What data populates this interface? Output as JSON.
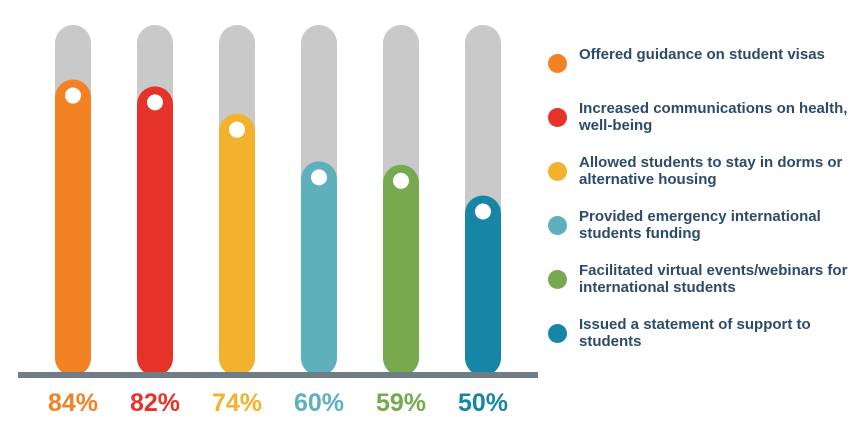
{
  "chart_data": {
    "type": "bar",
    "title": "",
    "xlabel": "",
    "ylabel": "",
    "ylim": [
      0,
      100
    ],
    "categories": [
      "Offered guidance on student visas",
      "Increased communications on health, well-being",
      "Allowed students to stay in dorms or alternative housing",
      "Provided emergency international students funding",
      "Facilitated virtual events/webinars for international students",
      "Issued a statement of support to students"
    ],
    "values": [
      84,
      82,
      74,
      60,
      59,
      50
    ],
    "value_labels": [
      "84%",
      "82%",
      "74%",
      "60%",
      "59%",
      "50%"
    ],
    "colors": [
      "#f28223",
      "#e5332a",
      "#f2b22e",
      "#5fb0bd",
      "#78a94f",
      "#1785a6"
    ],
    "track_color": "#c9c9c9",
    "baseline_color": "#6f7d86",
    "legend_placement": "right",
    "grid": false
  },
  "legend": {
    "items": [
      {
        "label": "Offered guidance on student visas",
        "color": "#f28223"
      },
      {
        "label": "Increased communications on health, well-being",
        "color": "#e5332a"
      },
      {
        "label": "Allowed students to stay in dorms or alternative housing",
        "color": "#f2b22e"
      },
      {
        "label": "Provided emergency international students funding",
        "color": "#5fb0bd"
      },
      {
        "label": "Facilitated virtual events/webinars for international students",
        "color": "#78a94f"
      },
      {
        "label": "Issued a statement of support to students",
        "color": "#1785a6"
      }
    ]
  }
}
